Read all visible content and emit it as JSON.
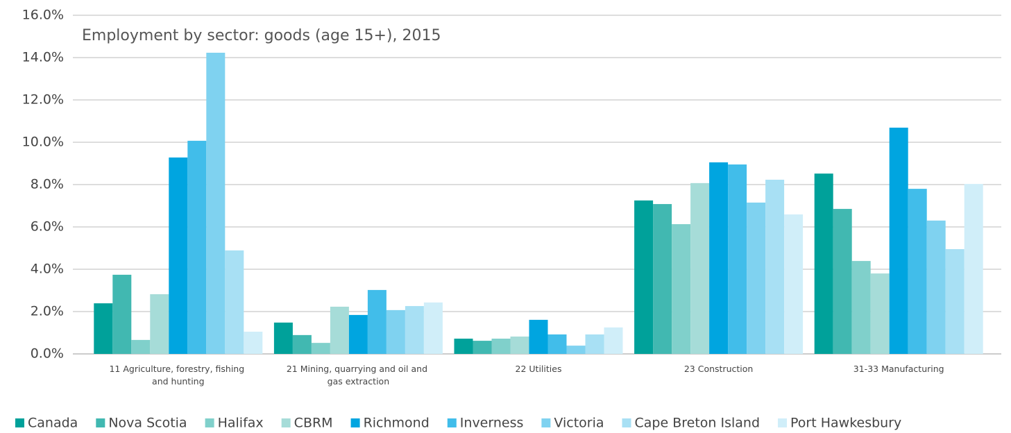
{
  "chart_data": {
    "type": "bar",
    "title": "Employment by sector: goods (age 15+), 2015",
    "categories": [
      "11 Agriculture, forestry, fishing and hunting",
      "21 Mining, quarrying and oil and gas extraction",
      "22 Utilities",
      "23 Construction",
      "31-33 Manufacturing"
    ],
    "series": [
      {
        "name": "Canada",
        "color": "#00a19a",
        "values": [
          2.39,
          1.48,
          0.72,
          7.25,
          8.52
        ]
      },
      {
        "name": "Nova Scotia",
        "color": "#41b8b1",
        "values": [
          3.74,
          0.89,
          0.62,
          7.08,
          6.85
        ]
      },
      {
        "name": "Halifax",
        "color": "#80d0cb",
        "values": [
          0.66,
          0.52,
          0.72,
          6.13,
          4.39
        ]
      },
      {
        "name": "CBRM",
        "color": "#a6dcd8",
        "values": [
          2.82,
          2.23,
          0.82,
          8.07,
          3.8
        ]
      },
      {
        "name": "Richmond",
        "color": "#00a5e0",
        "values": [
          9.28,
          1.84,
          1.61,
          9.05,
          10.69
        ]
      },
      {
        "name": "Inverness",
        "color": "#41bdea",
        "values": [
          10.07,
          3.02,
          0.92,
          8.95,
          7.8
        ]
      },
      {
        "name": "Victoria",
        "color": "#7fd2f0",
        "values": [
          14.23,
          2.07,
          0.39,
          7.15,
          6.3
        ]
      },
      {
        "name": "Cape Breton Island",
        "color": "#a8e0f4",
        "values": [
          4.89,
          2.26,
          0.92,
          8.23,
          4.95
        ]
      },
      {
        "name": "Port Hawkesbury",
        "color": "#d0eef9",
        "values": [
          1.05,
          2.43,
          1.25,
          6.59,
          8.03
        ]
      }
    ],
    "ylim": [
      0,
      16
    ],
    "yticks": [
      {
        "value": 0,
        "label": "0.0%"
      },
      {
        "value": 2,
        "label": "2.0%"
      },
      {
        "value": 4,
        "label": "4.0%"
      },
      {
        "value": 6,
        "label": "6.0%"
      },
      {
        "value": 8,
        "label": "8.0%"
      },
      {
        "value": 10,
        "label": "10.0%"
      },
      {
        "value": 12,
        "label": "12.0%"
      },
      {
        "value": 14,
        "label": "14.0%"
      },
      {
        "value": 16,
        "label": "16.0%"
      }
    ],
    "grid": true,
    "legend": "bottom"
  }
}
